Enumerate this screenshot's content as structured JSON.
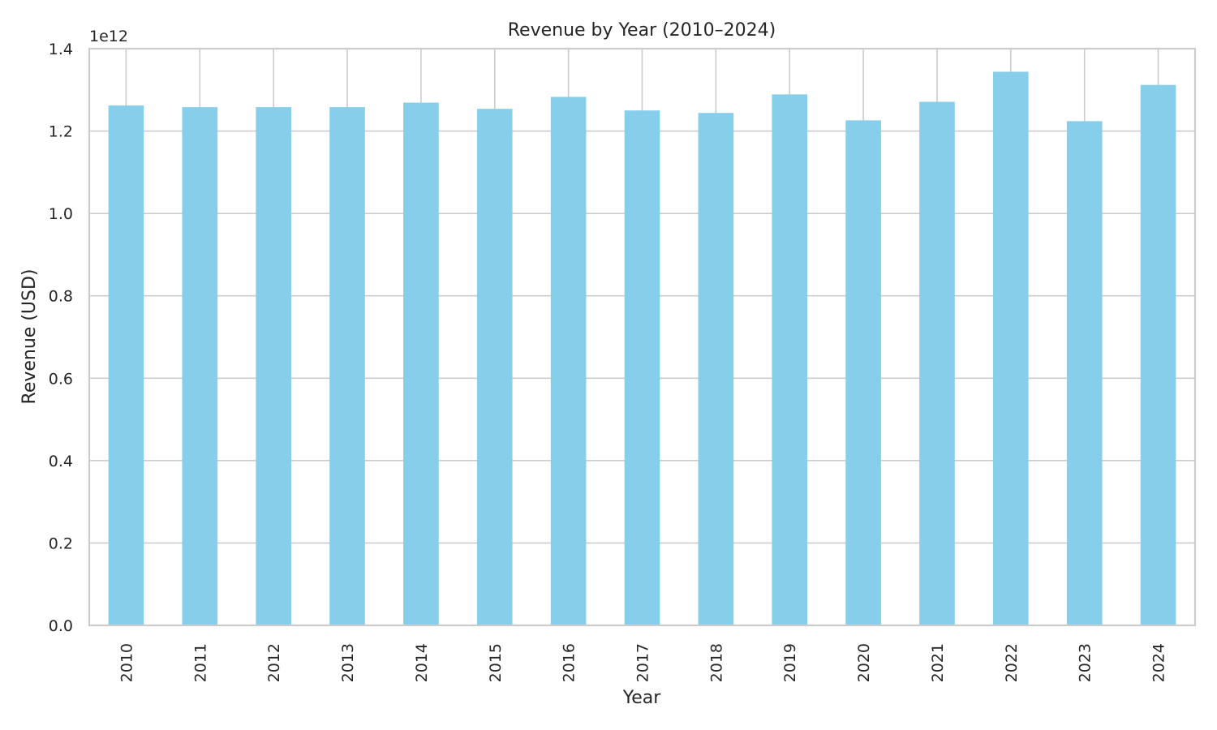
{
  "chart_data": {
    "type": "bar",
    "title": "Revenue by Year (2010–2024)",
    "xlabel": "Year",
    "ylabel": "Revenue (USD)",
    "offset_label": "1e12",
    "categories": [
      "2010",
      "2011",
      "2012",
      "2013",
      "2014",
      "2015",
      "2016",
      "2017",
      "2018",
      "2019",
      "2020",
      "2021",
      "2022",
      "2023",
      "2024"
    ],
    "values": [
      1262000000000.0,
      1258000000000.0,
      1258000000000.0,
      1258000000000.0,
      1269000000000.0,
      1254000000000.0,
      1283000000000.0,
      1250000000000.0,
      1244000000000.0,
      1289000000000.0,
      1226000000000.0,
      1271000000000.0,
      1344000000000.0,
      1224000000000.0,
      1312000000000.0
    ],
    "ylim": [
      0,
      1400000000000.0
    ],
    "yticks": [
      0,
      200000000000.0,
      400000000000.0,
      600000000000.0,
      800000000000.0,
      1000000000000.0,
      1200000000000.0,
      1400000000000.0
    ],
    "ytick_labels": [
      "0.0",
      "0.2",
      "0.4",
      "0.6",
      "0.8",
      "1.0",
      "1.2",
      "1.4"
    ],
    "bar_color": "#87ceeb",
    "grid": true,
    "legend": "none"
  }
}
